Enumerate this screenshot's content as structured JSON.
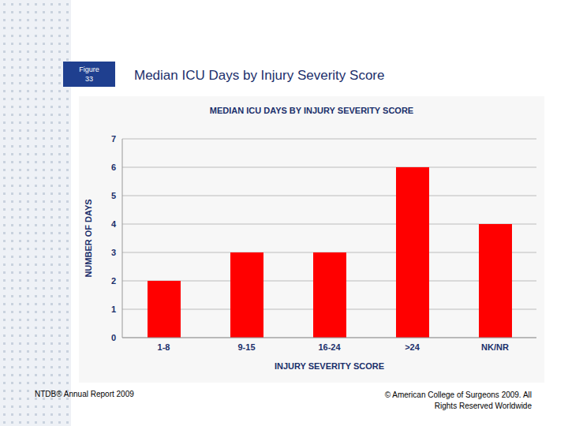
{
  "slide": {
    "figure_label": "Figure 33",
    "heading": "Median ICU Days by Injury Severity Score",
    "footer_left": "NTDB® Annual Report 2009",
    "footer_right": "© American College of Surgeons 2009.  All Rights Reserved Worldwide"
  },
  "chart_data": {
    "type": "bar",
    "title": "MEDIAN ICU DAYS BY INJURY SEVERITY SCORE",
    "x_label": "INJURY SEVERITY SCORE",
    "y_label": "NUMBER OF DAYS",
    "categories": [
      "1-8",
      "9-15",
      "16-24",
      ">24",
      "NK/NR"
    ],
    "values": [
      2,
      3,
      3,
      6,
      4
    ],
    "color": "#ff0000",
    "ylim": [
      0,
      7
    ],
    "yticks": [
      0,
      1,
      2,
      3,
      4,
      5,
      6,
      7
    ],
    "grid": true
  }
}
